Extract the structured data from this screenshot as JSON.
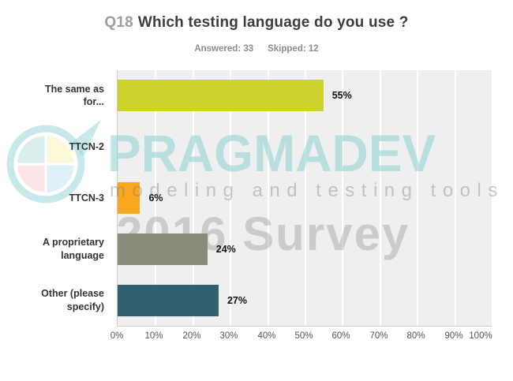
{
  "title": {
    "number": "Q18",
    "text": "Which testing language do you use ?"
  },
  "stats": {
    "answered": "Answered: 33",
    "skipped": "Skipped: 12"
  },
  "chart_data": {
    "type": "bar",
    "orientation": "horizontal",
    "title": "Q18 Which testing language do you use ?",
    "answered": 33,
    "skipped": 12,
    "categories": [
      "The same as\nfor...",
      "TTCN-2",
      "TTCN-3",
      "A proprietary\nlanguage",
      "Other (please\nspecify)"
    ],
    "values": [
      55,
      0,
      6,
      24,
      27
    ],
    "value_labels": [
      "55%",
      "",
      "6%",
      "24%",
      "27%"
    ],
    "bar_colors": [
      "#cdd22f",
      null,
      "#f8a71f",
      "#8b8b7c",
      "#31616f"
    ],
    "x_ticks": [
      "0%",
      "10%",
      "20%",
      "30%",
      "40%",
      "50%",
      "60%",
      "70%",
      "80%",
      "90%",
      "100%"
    ],
    "xlim": [
      0,
      100
    ],
    "grid": true,
    "plot_background": "#f0efef",
    "legend": "none"
  },
  "watermark": {
    "brand": "PRAGMADEV",
    "tagline": "modeling and testing tools",
    "survey": "2016 Survey",
    "brand_color": "#8bd0d0",
    "logo": {
      "ring_color": "#8ed2d2",
      "quadrant_top_left": "#cfe9e8",
      "quadrant_top_right": "#faf6cd",
      "quadrant_bottom_left": "#fadde1",
      "quadrant_bottom_right": "#d4ecf7"
    }
  }
}
